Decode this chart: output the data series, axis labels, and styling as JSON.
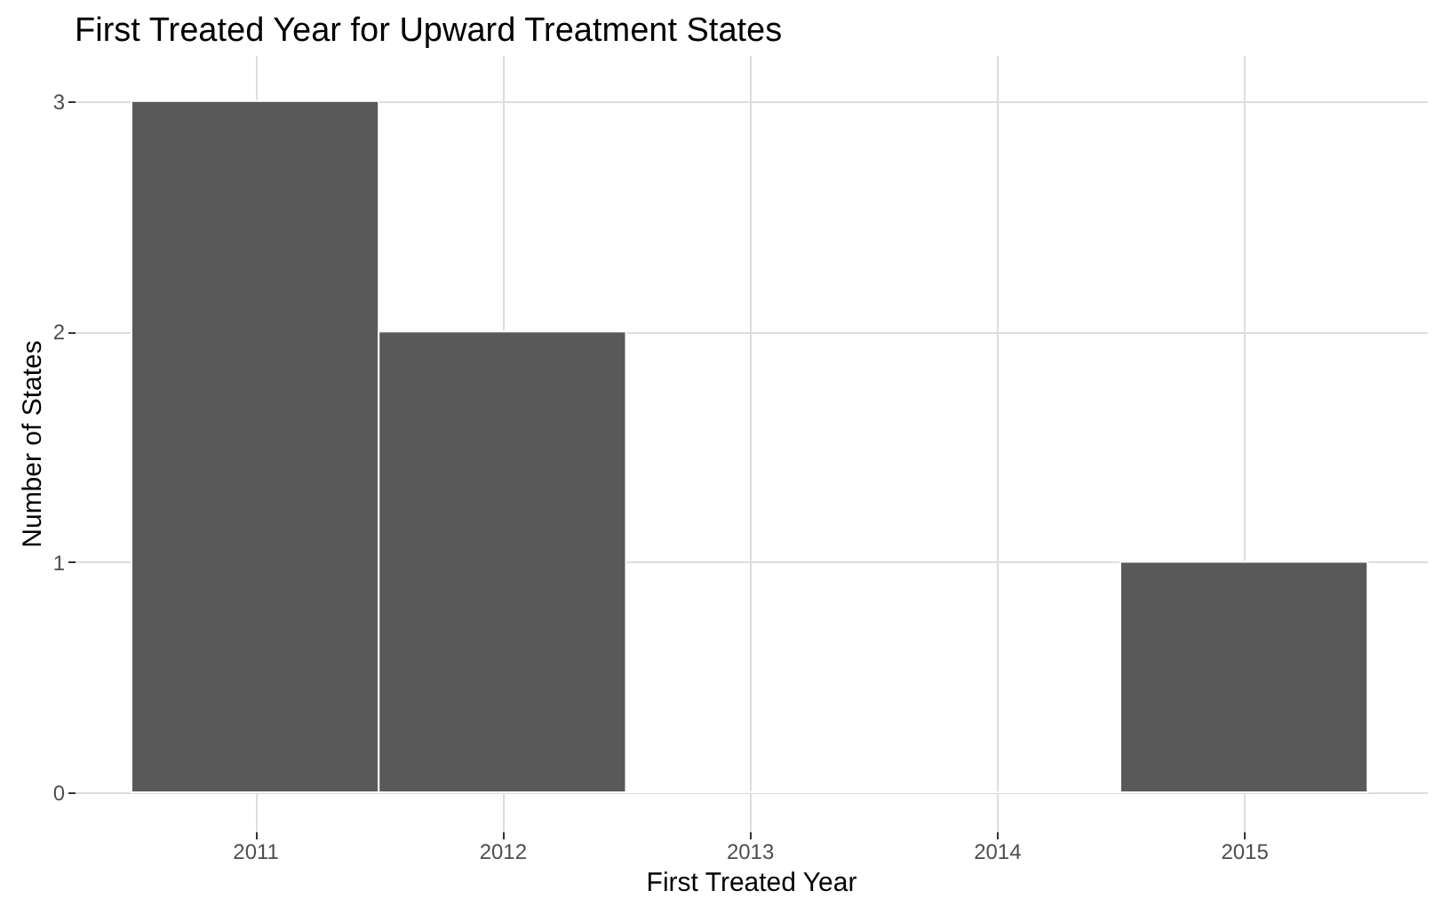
{
  "chart_data": {
    "type": "histogram",
    "title": "First Treated Year for Upward Treatment States",
    "xlabel": "First Treated Year",
    "ylabel": "Number of States",
    "bins": [
      2010.5,
      2011.5,
      2012.5,
      2013.5,
      2014.5,
      2015.5
    ],
    "values": [
      3,
      2,
      0,
      0,
      1
    ],
    "color": "#595959",
    "xlim": [
      2010.27,
      2015.74
    ],
    "xticks": [
      2011,
      2012,
      2013,
      2014,
      2015
    ],
    "ylim": [
      -0.17,
      3.2
    ],
    "yticks": [
      0,
      1,
      2,
      3
    ],
    "grid": true
  }
}
